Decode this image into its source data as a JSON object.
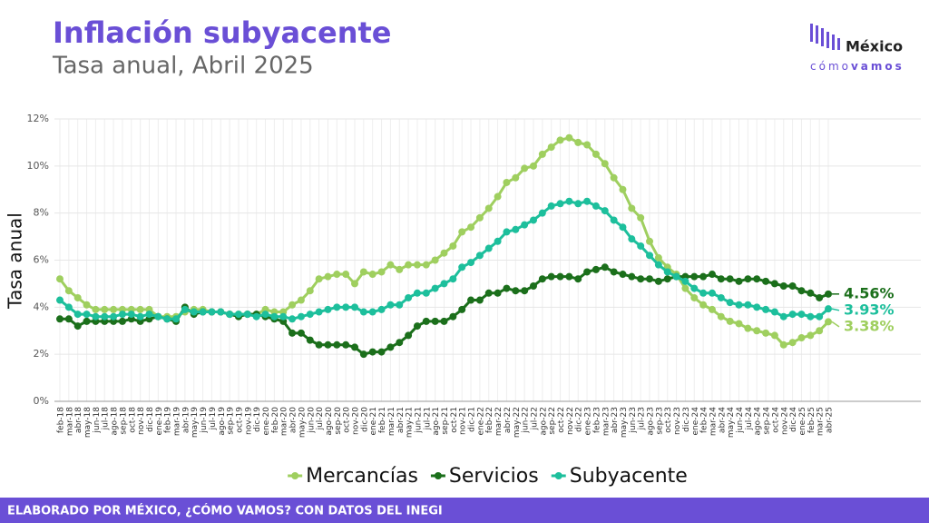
{
  "chart_data": {
    "type": "line",
    "title": "Inflación subyacente",
    "subtitle": "Tasa anual, Abril 2025",
    "ylabel": "Tasa anual",
    "footer": "ELABORADO POR MÉXICO, ¿CÓMO VAMOS? CON DATOS DEL INEGI",
    "logo": {
      "name": "México",
      "tag1": "cómo",
      "tag2": "vamos"
    },
    "grid": true,
    "legend": "bottom",
    "categories": [
      "feb-18",
      "mar-18",
      "abr-18",
      "may-18",
      "jun-18",
      "jul-18",
      "ago-18",
      "sep-18",
      "oct-18",
      "nov-18",
      "dic-18",
      "ene-19",
      "feb-19",
      "mar-19",
      "abr-19",
      "may-19",
      "jun-19",
      "jul-19",
      "ago-19",
      "sep-19",
      "oct-19",
      "nov-19",
      "dic-19",
      "ene-20",
      "feb-20",
      "mar-20",
      "abr-20",
      "may-20",
      "jun-20",
      "jul-20",
      "ago-20",
      "sep-20",
      "oct-20",
      "nov-20",
      "dic-20",
      "ene-21",
      "feb-21",
      "mar-21",
      "abr-21",
      "may-21",
      "jun-21",
      "jul-21",
      "ago-21",
      "sep-21",
      "oct-21",
      "nov-21",
      "dic-21",
      "ene-22",
      "feb-22",
      "mar-22",
      "abr-22",
      "may-22",
      "jun-22",
      "jul-22",
      "ago-22",
      "sep-22",
      "oct-22",
      "nov-22",
      "dic-22",
      "ene-23",
      "feb-23",
      "mar-23",
      "abr-23",
      "may-23",
      "jun-23",
      "jul-23",
      "ago-23",
      "sep-23",
      "oct-23",
      "nov-23",
      "dic-23",
      "ene-24",
      "feb-24",
      "mar-24",
      "abr-24",
      "may-24",
      "jun-24",
      "jul-24",
      "ago-24",
      "sep-24",
      "oct-24",
      "nov-24",
      "dic-24",
      "ene-25",
      "feb-25",
      "mar-25",
      "abr-25"
    ],
    "ylim": [
      0,
      12
    ],
    "yticks": [
      {
        "value": 0,
        "label": "0%"
      },
      {
        "value": 2,
        "label": "2%"
      },
      {
        "value": 4,
        "label": "4%"
      },
      {
        "value": 6,
        "label": "6%"
      },
      {
        "value": 8,
        "label": "8%"
      },
      {
        "value": 10,
        "label": "10%"
      },
      {
        "value": 12,
        "label": "12%"
      }
    ],
    "series": [
      {
        "name": "Mercancías",
        "color": "#9fcf5f",
        "end_label": "3.38%",
        "values": [
          5.2,
          4.7,
          4.4,
          4.1,
          3.9,
          3.9,
          3.9,
          3.9,
          3.9,
          3.9,
          3.9,
          3.6,
          3.6,
          3.6,
          3.8,
          3.9,
          3.9,
          3.8,
          3.8,
          3.7,
          3.7,
          3.7,
          3.7,
          3.9,
          3.8,
          3.8,
          4.1,
          4.3,
          4.7,
          5.2,
          5.3,
          5.4,
          5.4,
          5.0,
          5.5,
          5.4,
          5.5,
          5.8,
          5.6,
          5.8,
          5.8,
          5.8,
          6.0,
          6.3,
          6.6,
          7.2,
          7.4,
          7.8,
          8.2,
          8.7,
          9.3,
          9.5,
          9.9,
          10.0,
          10.5,
          10.8,
          11.1,
          11.2,
          11.0,
          10.9,
          10.5,
          10.1,
          9.5,
          9.0,
          8.2,
          7.8,
          6.8,
          6.1,
          5.7,
          5.4,
          4.8,
          4.4,
          4.1,
          3.9,
          3.6,
          3.4,
          3.3,
          3.1,
          3.0,
          2.9,
          2.8,
          2.4,
          2.5,
          2.7,
          2.8,
          3.0,
          3.38
        ]
      },
      {
        "name": "Servicios",
        "color": "#1b6f1b",
        "end_label": "4.56%",
        "values": [
          3.5,
          3.5,
          3.2,
          3.4,
          3.4,
          3.4,
          3.4,
          3.4,
          3.5,
          3.4,
          3.5,
          3.6,
          3.5,
          3.4,
          4.0,
          3.7,
          3.8,
          3.8,
          3.8,
          3.7,
          3.6,
          3.7,
          3.7,
          3.6,
          3.5,
          3.4,
          2.9,
          2.9,
          2.6,
          2.4,
          2.4,
          2.4,
          2.4,
          2.3,
          2.0,
          2.1,
          2.1,
          2.3,
          2.5,
          2.8,
          3.2,
          3.4,
          3.4,
          3.4,
          3.6,
          3.9,
          4.3,
          4.3,
          4.6,
          4.6,
          4.8,
          4.7,
          4.7,
          4.9,
          5.2,
          5.3,
          5.3,
          5.3,
          5.2,
          5.5,
          5.6,
          5.7,
          5.5,
          5.4,
          5.3,
          5.2,
          5.2,
          5.1,
          5.2,
          5.3,
          5.3,
          5.3,
          5.3,
          5.4,
          5.2,
          5.2,
          5.1,
          5.2,
          5.2,
          5.1,
          5.0,
          4.9,
          4.9,
          4.7,
          4.6,
          4.4,
          4.56
        ]
      },
      {
        "name": "Subyacente",
        "color": "#1dbf9c",
        "end_label": "3.93%",
        "values": [
          4.3,
          4.0,
          3.7,
          3.7,
          3.6,
          3.6,
          3.6,
          3.7,
          3.7,
          3.6,
          3.7,
          3.6,
          3.5,
          3.5,
          3.9,
          3.8,
          3.8,
          3.8,
          3.8,
          3.7,
          3.7,
          3.7,
          3.6,
          3.7,
          3.6,
          3.6,
          3.5,
          3.6,
          3.7,
          3.8,
          3.9,
          4.0,
          4.0,
          4.0,
          3.8,
          3.8,
          3.9,
          4.1,
          4.1,
          4.4,
          4.6,
          4.6,
          4.8,
          5.0,
          5.2,
          5.7,
          5.9,
          6.2,
          6.5,
          6.8,
          7.2,
          7.3,
          7.5,
          7.7,
          8.0,
          8.3,
          8.4,
          8.5,
          8.4,
          8.5,
          8.3,
          8.1,
          7.7,
          7.4,
          6.9,
          6.6,
          6.2,
          5.8,
          5.5,
          5.3,
          5.1,
          4.8,
          4.6,
          4.6,
          4.4,
          4.2,
          4.1,
          4.1,
          4.0,
          3.9,
          3.8,
          3.6,
          3.7,
          3.7,
          3.6,
          3.6,
          3.93
        ]
      }
    ]
  }
}
